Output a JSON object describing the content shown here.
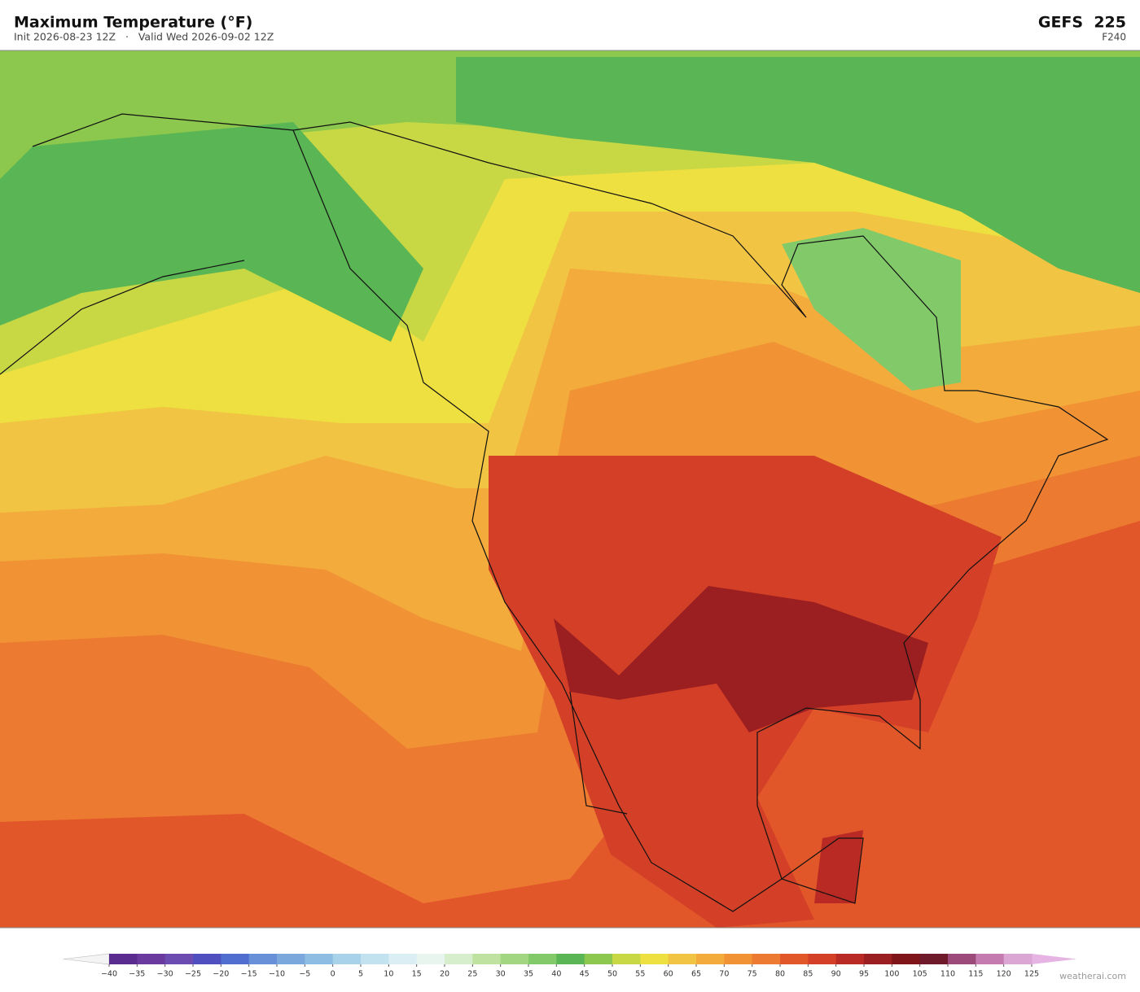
{
  "header": {
    "title": "Maximum Temperature  (°F)",
    "subtitle": "Init 2026-08-23 12Z   ·   Valid Wed 2026-09-02 12Z",
    "model": "GEFS  225",
    "forecast_hour": "F240"
  },
  "colorbar": {
    "ticks": [
      {
        "value": -40,
        "label": "−40"
      },
      {
        "value": -35,
        "label": "−35"
      },
      {
        "value": -30,
        "label": "−30"
      },
      {
        "value": -25,
        "label": "−25"
      },
      {
        "value": -20,
        "label": "−20"
      },
      {
        "value": -15,
        "label": "−15"
      },
      {
        "value": -10,
        "label": "−10"
      },
      {
        "value": -5,
        "label": "−5"
      },
      0,
      5,
      10,
      15,
      20,
      25,
      30,
      35,
      40,
      45,
      50,
      55,
      60,
      65,
      70,
      75,
      80,
      85,
      90,
      95,
      100,
      105,
      110,
      115,
      120,
      125
    ],
    "colors": [
      "#5b2c8f",
      "#6a3a9e",
      "#6c4cb0",
      "#4f4fc0",
      "#4f6ed0",
      "#6890d8",
      "#7aa8dc",
      "#8dbde2",
      "#a8d2ea",
      "#c3e2f0",
      "#daeef4",
      "#e8f4ee",
      "#d6eecb",
      "#bfe2a0",
      "#a3d680",
      "#82c96a",
      "#5ab555",
      "#8cc84e",
      "#c8d845",
      "#ede040",
      "#f2c443",
      "#f3ab3c",
      "#f19235",
      "#ec7a30",
      "#e2572a",
      "#d33f27",
      "#b82a23",
      "#9b1e20",
      "#7f1518",
      "#6e1a2a",
      "#9c4a7a",
      "#c47bb0",
      "#dca6d4"
    ],
    "under_color": "#f4f4f4",
    "over_color": "#e6b4e2"
  },
  "footer": {
    "credit": "weatherai.com"
  }
}
